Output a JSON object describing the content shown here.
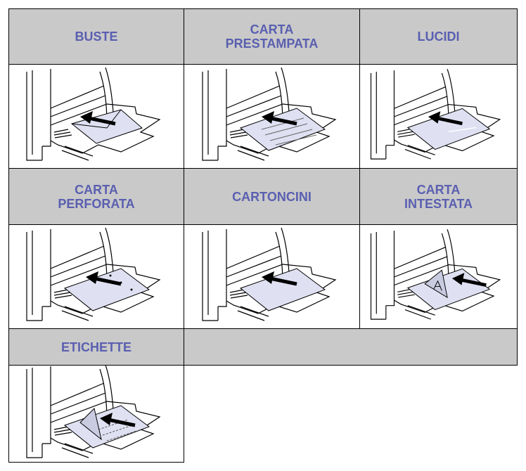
{
  "table": {
    "headers": [
      [
        "BUSTE"
      ],
      [
        "CARTA",
        "PRESTAMPATA"
      ],
      [
        "LUCIDI"
      ],
      [
        "CARTA",
        "PERFORATA"
      ],
      [
        "CARTONCINI"
      ],
      [
        "CARTA",
        "INTESTATA"
      ],
      [
        "ETICHETTE"
      ]
    ]
  }
}
